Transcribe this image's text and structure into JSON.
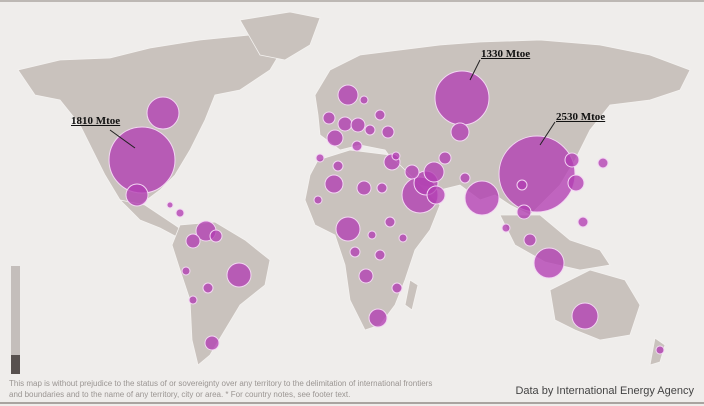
{
  "map": {
    "land_color": "#c9c2bd",
    "bubble_color": "#b23db2",
    "background_color": "#efedeb",
    "callouts": [
      {
        "id": "north-america",
        "label": "1810 Mtoe"
      },
      {
        "id": "russia",
        "label": "1330 Mtoe"
      },
      {
        "id": "china",
        "label": "2530 Mtoe"
      }
    ]
  },
  "time_slider": {
    "level": 0.18
  },
  "footer": {
    "disclaimer": "This map is without prejudice to the status of or sovereignty over any territory to the delimitation of international frontiers and boundaries and to the name of any territory, city or area. * For country notes, see footer text.",
    "credit": "Data by International Energy Agency"
  }
}
